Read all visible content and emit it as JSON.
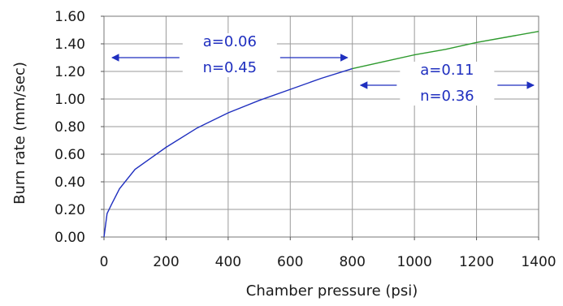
{
  "chart_data": {
    "type": "line",
    "title": "",
    "xlabel": "Chamber pressure (psi)",
    "ylabel": "Burn rate (mm/sec)",
    "xlim": [
      0,
      1400
    ],
    "ylim": [
      0,
      1.6
    ],
    "x_ticks": [
      "0",
      "200",
      "400",
      "600",
      "800",
      "1000",
      "1200",
      "1400"
    ],
    "y_ticks": [
      "0.00",
      "0.20",
      "0.40",
      "0.60",
      "0.80",
      "1.00",
      "1.20",
      "1.40",
      "1.60"
    ],
    "grid": true,
    "series": [
      {
        "color": "#1f2fbf",
        "x": [
          0,
          10,
          25,
          50,
          100,
          150,
          200,
          300,
          400,
          500,
          600,
          700,
          800
        ],
        "y": [
          0.0,
          0.17,
          0.24,
          0.35,
          0.49,
          0.57,
          0.65,
          0.79,
          0.9,
          0.99,
          1.07,
          1.15,
          1.22
        ]
      },
      {
        "color": "#2e9a2e",
        "x": [
          800,
          900,
          1000,
          1100,
          1200,
          1300,
          1400
        ],
        "y": [
          1.22,
          1.27,
          1.32,
          1.36,
          1.41,
          1.45,
          1.49
        ]
      }
    ],
    "annotations": [
      {
        "line1": "a=0.06",
        "line2": "n=0.45",
        "arrow_from": 0,
        "arrow_to": 800
      },
      {
        "line1": "a=0.11",
        "line2": "n=0.36",
        "arrow_from": 800,
        "arrow_to": 1400
      }
    ],
    "annotation_color": "#1f2fbf"
  }
}
